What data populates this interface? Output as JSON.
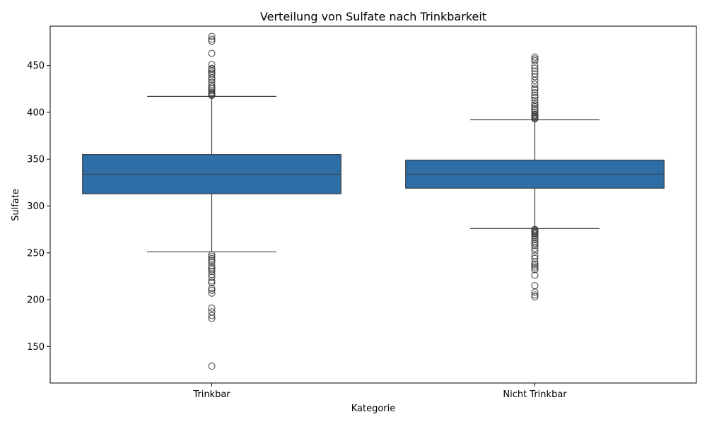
{
  "chart_data": {
    "type": "box",
    "title": "Verteilung von Sulfate nach Trinkbarkeit",
    "xlabel": "Kategorie",
    "ylabel": "Sulfate",
    "ylim": [
      111,
      492
    ],
    "yticks": [
      150,
      200,
      250,
      300,
      350,
      400,
      450
    ],
    "color": "#2e6ea6",
    "categories": [
      "Trinkbar",
      "Nicht Trinkbar"
    ],
    "boxes": [
      {
        "category": "Trinkbar",
        "whisker_low": 251,
        "q1": 313,
        "median": 334,
        "q3": 355,
        "whisker_high": 417,
        "outliers": [
          129,
          180,
          183,
          187,
          191,
          207,
          210,
          212,
          218,
          220,
          224,
          227,
          230,
          232,
          234,
          236,
          240,
          242,
          244,
          246,
          248,
          418,
          419,
          420,
          421,
          423,
          425,
          427,
          429,
          432,
          435,
          437,
          440,
          442,
          444,
          446,
          447,
          451,
          463,
          476,
          478,
          481
        ]
      },
      {
        "category": "Nicht Trinkbar",
        "whisker_low": 276,
        "q1": 319,
        "median": 334,
        "q3": 349,
        "whisker_high": 392,
        "outliers": [
          203,
          205,
          208,
          215,
          226,
          232,
          234,
          236,
          238,
          240,
          244,
          247,
          252,
          255,
          258,
          260,
          262,
          264,
          266,
          268,
          270,
          271,
          272,
          273,
          274,
          275,
          393,
          394,
          395,
          396,
          397,
          398,
          400,
          402,
          404,
          406,
          408,
          410,
          413,
          416,
          418,
          421,
          424,
          426,
          430,
          434,
          438,
          441,
          444,
          447,
          450,
          455,
          457,
          459
        ]
      }
    ]
  }
}
